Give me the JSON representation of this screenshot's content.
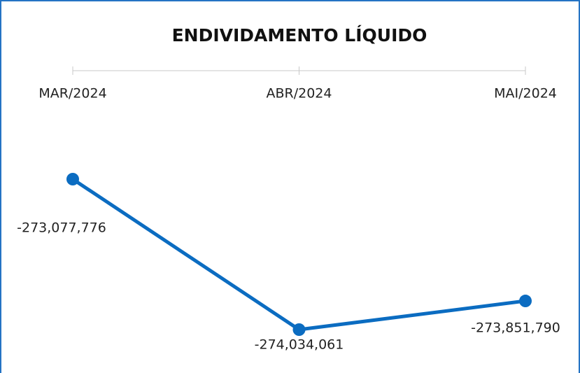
{
  "chart_data": {
    "type": "line",
    "title": "ENDIVIDAMENTO LÍQUIDO",
    "categories": [
      "MAR/2024",
      "ABR/2024",
      "MAI/2024"
    ],
    "series": [
      {
        "name": "Endividamento Líquido",
        "color": "#0b6cc1",
        "values": [
          -273077776,
          -274034061,
          -273851790
        ],
        "value_labels": [
          "-273,077,776",
          "-274,034,061",
          "-273,851,790"
        ]
      }
    ]
  }
}
